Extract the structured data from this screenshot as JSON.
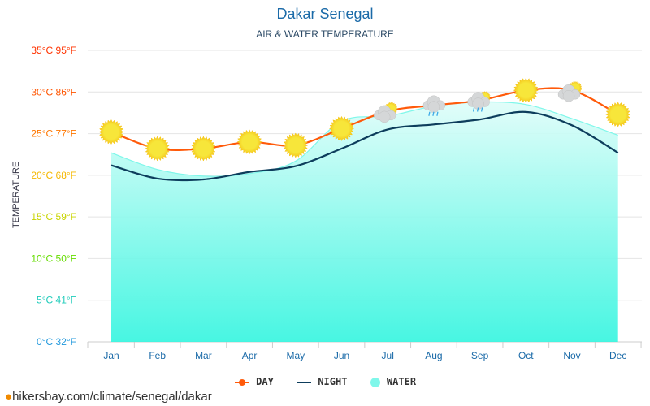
{
  "chart_data": {
    "type": "line",
    "title": "Dakar Senegal",
    "subtitle": "AIR & WATER TEMPERATURE",
    "ylabel": "TEMPERATURE",
    "categories": [
      "Jan",
      "Feb",
      "Mar",
      "Apr",
      "May",
      "Jun",
      "Jul",
      "Aug",
      "Sep",
      "Oct",
      "Nov",
      "Dec"
    ],
    "ylim": [
      0,
      35
    ],
    "yticks": [
      {
        "v": 35,
        "label": "35°C 95°F",
        "color": "#ff3300"
      },
      {
        "v": 30,
        "label": "30°C 86°F",
        "color": "#ff5500"
      },
      {
        "v": 25,
        "label": "25°C 77°F",
        "color": "#ff7700"
      },
      {
        "v": 20,
        "label": "20°C 68°F",
        "color": "#f5b800"
      },
      {
        "v": 15,
        "label": "15°C 59°F",
        "color": "#c8d400"
      },
      {
        "v": 10,
        "label": "10°C 50°F",
        "color": "#66dd00"
      },
      {
        "v": 5,
        "label": "5°C 41°F",
        "color": "#22ccbb"
      },
      {
        "v": 0,
        "label": "0°C 32°F",
        "color": "#2299dd"
      }
    ],
    "grid": true,
    "legend": "bottom",
    "series": [
      {
        "name": "DAY",
        "color": "#ff5a0a",
        "values": [
          25.2,
          23.2,
          23.2,
          24.0,
          23.6,
          25.6,
          27.7,
          28.4,
          29.0,
          30.2,
          30.2,
          27.3
        ]
      },
      {
        "name": "NIGHT",
        "color": "#0d3d5c",
        "values": [
          21.2,
          19.6,
          19.5,
          20.4,
          21.1,
          23.2,
          25.5,
          26.1,
          26.7,
          27.6,
          26.0,
          22.7
        ]
      },
      {
        "name": "WATER",
        "color": "#7ff7ea",
        "values": [
          22.7,
          20.7,
          19.9,
          20.2,
          21.7,
          26.5,
          27.1,
          28.3,
          28.8,
          28.5,
          26.8,
          24.8
        ]
      }
    ],
    "weather_icons": [
      "sun",
      "sun",
      "sun",
      "sun",
      "sun",
      "sun",
      "partly-cloudy",
      "rain",
      "rain-sun",
      "sun",
      "partly-cloudy",
      "sun"
    ]
  },
  "footer": "hikersbay.com/climate/senegal/dakar"
}
